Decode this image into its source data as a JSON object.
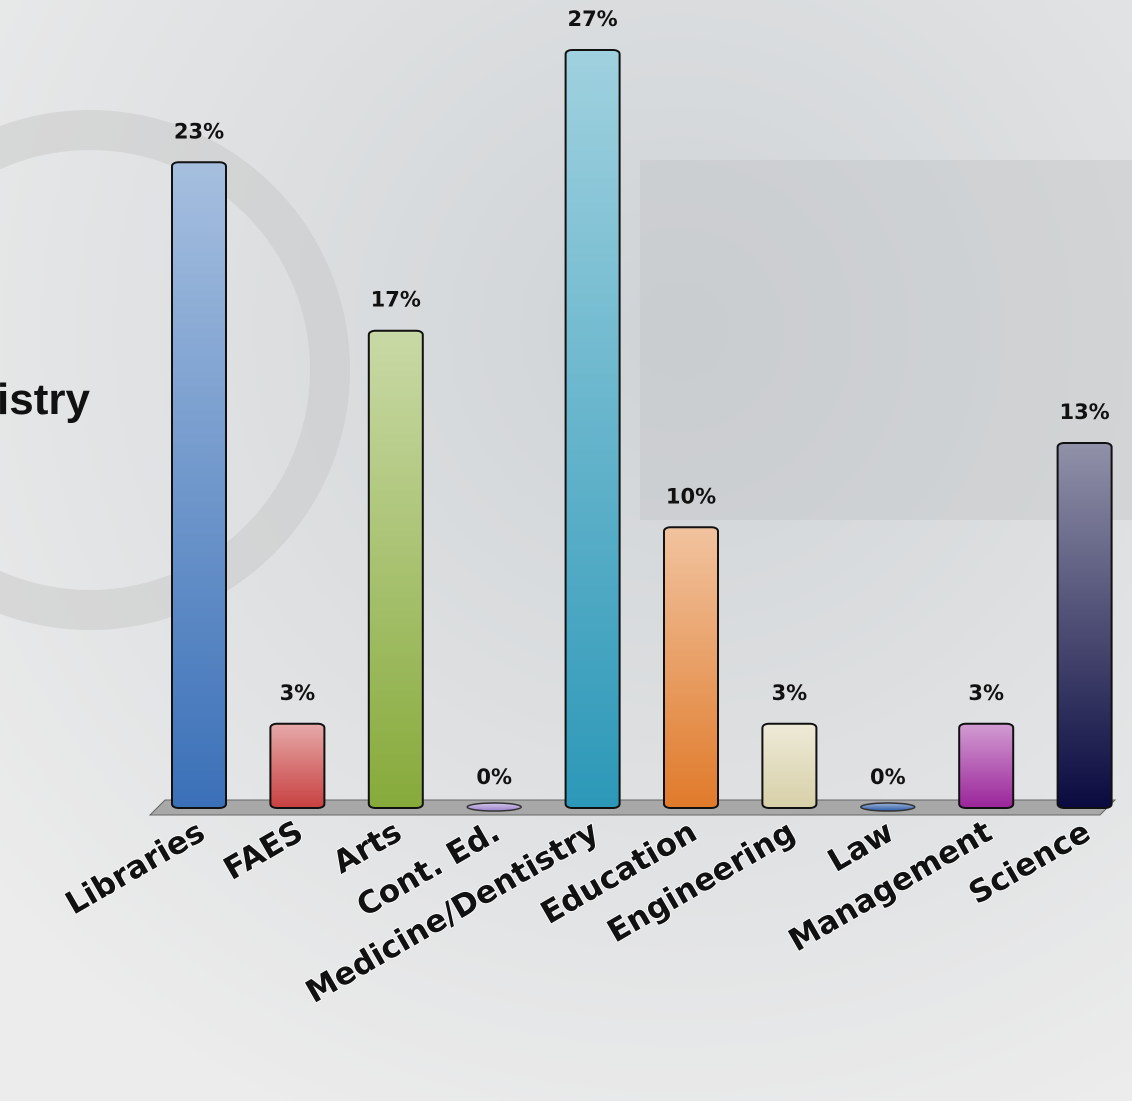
{
  "chart_data": {
    "type": "bar",
    "annotation": "istry",
    "categories": [
      "Libraries",
      "FAES",
      "Arts",
      "Cont. Ed.",
      "Medicine/Dentistry",
      "Education",
      "Engineering",
      "Law",
      "Management",
      "Science"
    ],
    "values": [
      23,
      3,
      17,
      0,
      27,
      10,
      3,
      0,
      3,
      13
    ],
    "value_labels": [
      "23%",
      "3%",
      "17%",
      "0%",
      "27%",
      "10%",
      "3%",
      "0%",
      "3%",
      "13%"
    ],
    "colors": [
      "#3a70b8",
      "#c84040",
      "#86aa3a",
      "#9a80cc",
      "#2c98b8",
      "#e07a2a",
      "#d8d0a8",
      "#2a5aa8",
      "#9a249a",
      "#0a0a40"
    ]
  }
}
